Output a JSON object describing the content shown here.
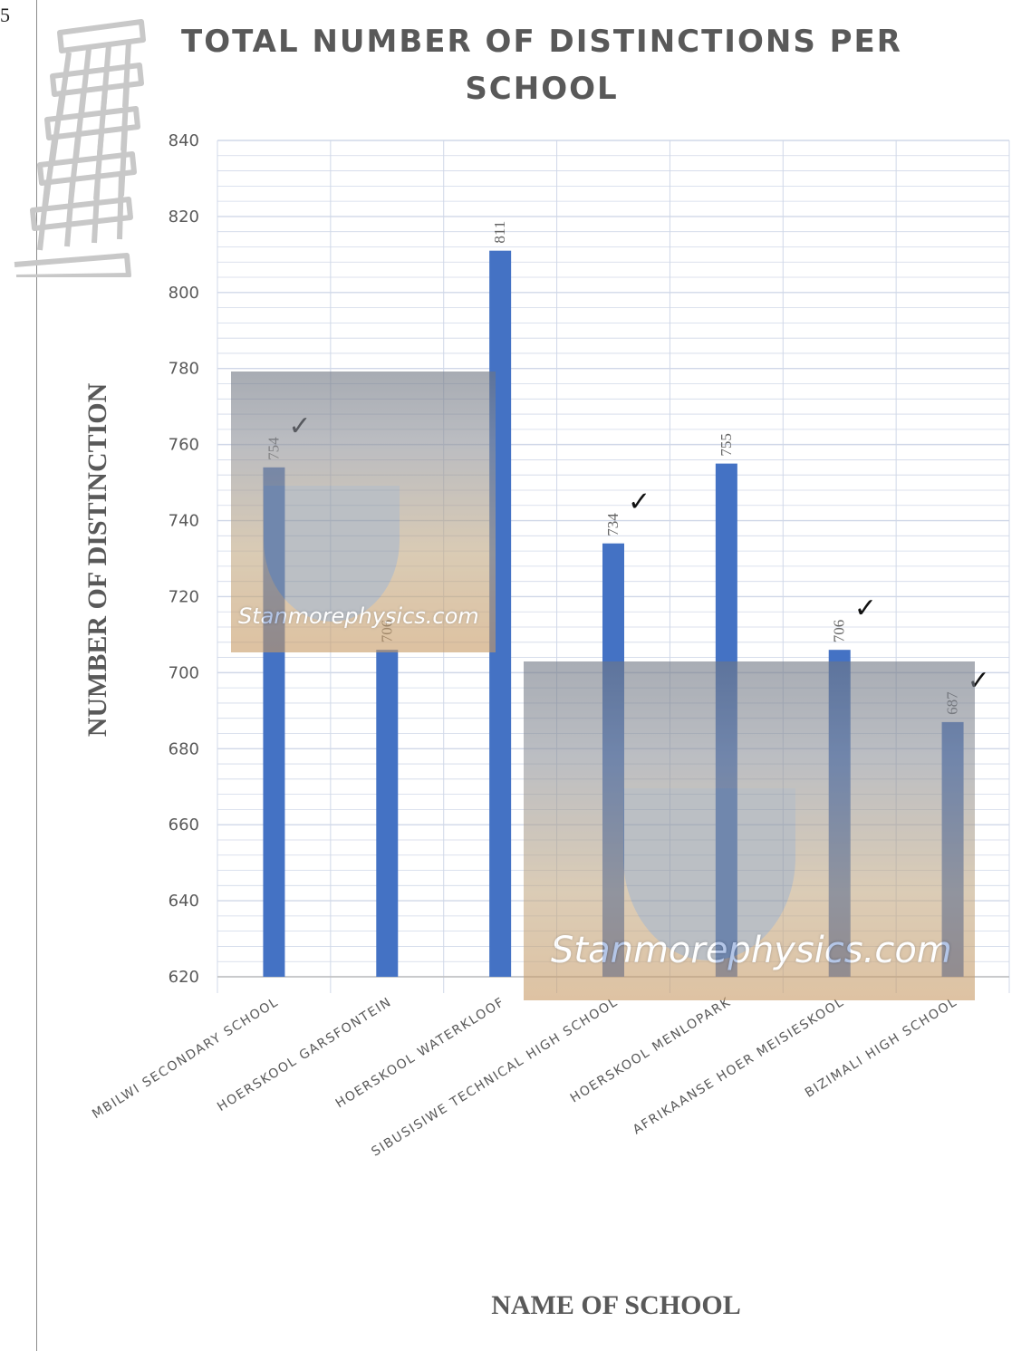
{
  "page": {
    "page_number": "5"
  },
  "watermark": {
    "text": "Stanmorephysics.com"
  },
  "chart_data": {
    "type": "bar",
    "title_line1": "TOTAL NUMBER OF DISTINCTIONS PER",
    "title_line2": "SCHOOL",
    "xlabel": "NAME OF SCHOOL",
    "ylabel": "NUMBER OF DISTINCTION",
    "categories": [
      "MBILWI SECONDARY SCHOOL",
      "HOERSKOOL GARSFONTEIN",
      "HOERSKOOL WATERKLOOF",
      "SIBUSISIWE TECHNICAL HIGH SCHOOL",
      "HOERSKOOL MENLOPARK",
      "AFRIKAANSE HOER MEISIESKOOL",
      "BIZIMALI HIGH SCHOOL"
    ],
    "values": [
      754,
      706,
      811,
      734,
      755,
      706,
      687
    ],
    "data_labels": [
      "754",
      "706",
      "811",
      "734",
      "755",
      "706",
      "687"
    ],
    "checkmarks": [
      true,
      false,
      false,
      true,
      false,
      true,
      true
    ],
    "check_symbol": "✓",
    "ylim": [
      620,
      840
    ],
    "yticks": [
      620,
      640,
      660,
      680,
      700,
      720,
      740,
      760,
      780,
      800,
      820,
      840
    ],
    "grid": true,
    "bar_color": "#4472c4",
    "grid_color": "#d0d8e8"
  }
}
